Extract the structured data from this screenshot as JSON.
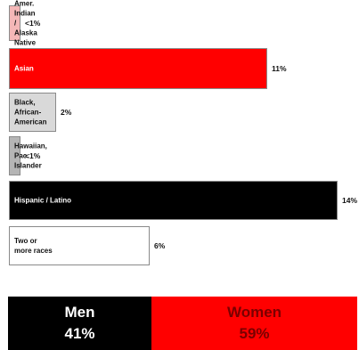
{
  "chart_data": {
    "type": "bar",
    "orientation": "horizontal",
    "categories": [
      "Amer. Indian /\nAlaska Native",
      "Asian",
      "Black,\nAfrican-\nAmerican",
      "Hawaiian,\nPac.\nIslander",
      "Hispanic / Latino",
      "Two or\nmore races"
    ],
    "values": [
      0.5,
      11,
      2,
      0.5,
      14,
      6
    ],
    "value_labels": [
      "<1%",
      "11%",
      "2%",
      "<1%",
      "14%",
      "6%"
    ],
    "colors": [
      "#f4b7b7",
      "#ff0000",
      "#d9d9d9",
      "#b5b5b5",
      "#000000",
      "#ffffff"
    ],
    "label_colors": [
      "#111111",
      "#ffffff",
      "#111111",
      "#111111",
      "#ffffff",
      "#111111"
    ],
    "xlim": [
      0,
      14
    ],
    "grid": false
  },
  "gender": [
    {
      "label": "Men",
      "value": "41%",
      "share": 41,
      "color": "#000000"
    },
    {
      "label": "Women",
      "value": "59%",
      "share": 59,
      "color": "#ff0000"
    }
  ]
}
